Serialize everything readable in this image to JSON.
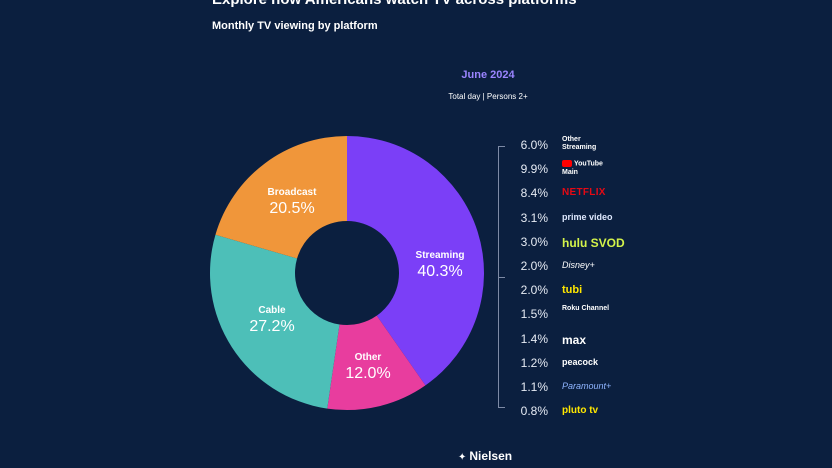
{
  "header": {
    "title": "Explore how Americans watch TV across platforms",
    "subtitle": "Monthly TV viewing by platform"
  },
  "period": {
    "label": "June 2024",
    "sublabel": "Total day | Persons 2+"
  },
  "chart_data": {
    "type": "pie",
    "title": "Monthly TV viewing by platform",
    "subtitle": "June 2024 — Total day | Persons 2+",
    "slices": [
      {
        "name": "Streaming",
        "value": 40.3,
        "label": "40.3%",
        "color": "#7b3ff7"
      },
      {
        "name": "Other",
        "value": 12.0,
        "label": "12.0%",
        "color": "#e83d9e"
      },
      {
        "name": "Cable",
        "value": 27.2,
        "label": "27.2%",
        "color": "#4dbfb8"
      },
      {
        "name": "Broadcast",
        "value": 20.5,
        "label": "20.5%",
        "color": "#f0963a"
      }
    ],
    "streaming_breakdown": [
      {
        "name": "Other Streaming",
        "value": 6.0,
        "label": "6.0%"
      },
      {
        "name": "YouTube Main",
        "value": 9.9,
        "label": "9.9%"
      },
      {
        "name": "NETFLIX",
        "value": 8.4,
        "label": "8.4%"
      },
      {
        "name": "prime video",
        "value": 3.1,
        "label": "3.1%"
      },
      {
        "name": "hulu SVOD",
        "value": 3.0,
        "label": "3.0%"
      },
      {
        "name": "Disney+",
        "value": 2.0,
        "label": "2.0%"
      },
      {
        "name": "tubi",
        "value": 2.0,
        "label": "2.0%"
      },
      {
        "name": "Roku Channel",
        "value": 1.5,
        "label": "1.5%"
      },
      {
        "name": "max",
        "value": 1.4,
        "label": "1.4%"
      },
      {
        "name": "peacock",
        "value": 1.2,
        "label": "1.2%"
      },
      {
        "name": "Paramount+",
        "value": 1.1,
        "label": "1.1%"
      },
      {
        "name": "pluto tv",
        "value": 0.8,
        "label": "0.8%"
      }
    ]
  },
  "footer": {
    "brand": "Nielsen"
  }
}
